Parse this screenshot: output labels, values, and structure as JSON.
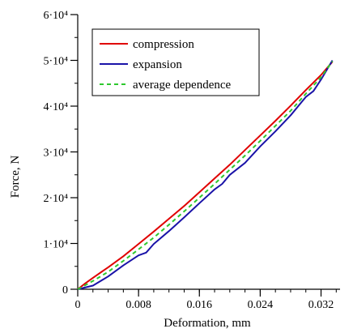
{
  "chart_data": {
    "type": "line",
    "title": "",
    "xlabel": "Deformation, mm",
    "ylabel": "Force, N",
    "xlim": [
      0,
      0.0345
    ],
    "ylim": [
      0,
      60000
    ],
    "x_ticks": [
      {
        "value": 0,
        "label": "0"
      },
      {
        "value": 0.008,
        "label": "0.008"
      },
      {
        "value": 0.016,
        "label": "0.016"
      },
      {
        "value": 0.024,
        "label": "0.024"
      },
      {
        "value": 0.032,
        "label": "0.032"
      }
    ],
    "x_minor_step": 0.002,
    "y_ticks": [
      {
        "value": 0,
        "label": "0"
      },
      {
        "value": 10000,
        "label": "1·10⁴"
      },
      {
        "value": 20000,
        "label": "2·10⁴"
      },
      {
        "value": 30000,
        "label": "3·10⁴"
      },
      {
        "value": 40000,
        "label": "4·10⁴"
      },
      {
        "value": 50000,
        "label": "5·10⁴"
      },
      {
        "value": 60000,
        "label": "6·10⁴"
      }
    ],
    "y_minor_step": 5000,
    "grid": false,
    "legend_position": "top-right",
    "series": [
      {
        "name": "compression",
        "color": "#e00000",
        "dash": "solid",
        "points": [
          [
            0,
            0
          ],
          [
            0.001,
            1300
          ],
          [
            0.002,
            2500
          ],
          [
            0.004,
            4800
          ],
          [
            0.006,
            7200
          ],
          [
            0.008,
            9900
          ],
          [
            0.01,
            12600
          ],
          [
            0.012,
            15400
          ],
          [
            0.014,
            18200
          ],
          [
            0.016,
            21200
          ],
          [
            0.018,
            24200
          ],
          [
            0.02,
            27200
          ],
          [
            0.022,
            30400
          ],
          [
            0.024,
            33600
          ],
          [
            0.026,
            36800
          ],
          [
            0.028,
            40100
          ],
          [
            0.03,
            43500
          ],
          [
            0.032,
            46800
          ],
          [
            0.0335,
            49700
          ]
        ]
      },
      {
        "name": "expansion",
        "color": "#1a13a8",
        "dash": "solid",
        "points": [
          [
            0,
            0
          ],
          [
            0.002,
            800
          ],
          [
            0.004,
            2800
          ],
          [
            0.006,
            5200
          ],
          [
            0.008,
            7400
          ],
          [
            0.009,
            8000
          ],
          [
            0.01,
            9900
          ],
          [
            0.012,
            12700
          ],
          [
            0.014,
            15700
          ],
          [
            0.016,
            18800
          ],
          [
            0.018,
            21800
          ],
          [
            0.019,
            23000
          ],
          [
            0.02,
            25000
          ],
          [
            0.022,
            27600
          ],
          [
            0.024,
            31200
          ],
          [
            0.026,
            34500
          ],
          [
            0.028,
            38000
          ],
          [
            0.03,
            42000
          ],
          [
            0.031,
            43300
          ],
          [
            0.032,
            45800
          ],
          [
            0.0335,
            50000
          ]
        ]
      },
      {
        "name": "average dependence",
        "color": "#2ec82e",
        "dash": "dashed",
        "points": [
          [
            0,
            0
          ],
          [
            0.002,
            1800
          ],
          [
            0.004,
            3800
          ],
          [
            0.006,
            6200
          ],
          [
            0.008,
            8700
          ],
          [
            0.01,
            11300
          ],
          [
            0.012,
            14100
          ],
          [
            0.014,
            17000
          ],
          [
            0.016,
            20000
          ],
          [
            0.018,
            23000
          ],
          [
            0.02,
            26100
          ],
          [
            0.022,
            29200
          ],
          [
            0.024,
            32400
          ],
          [
            0.026,
            35700
          ],
          [
            0.028,
            39000
          ],
          [
            0.03,
            42700
          ],
          [
            0.032,
            46300
          ],
          [
            0.0335,
            49800
          ]
        ]
      }
    ]
  }
}
